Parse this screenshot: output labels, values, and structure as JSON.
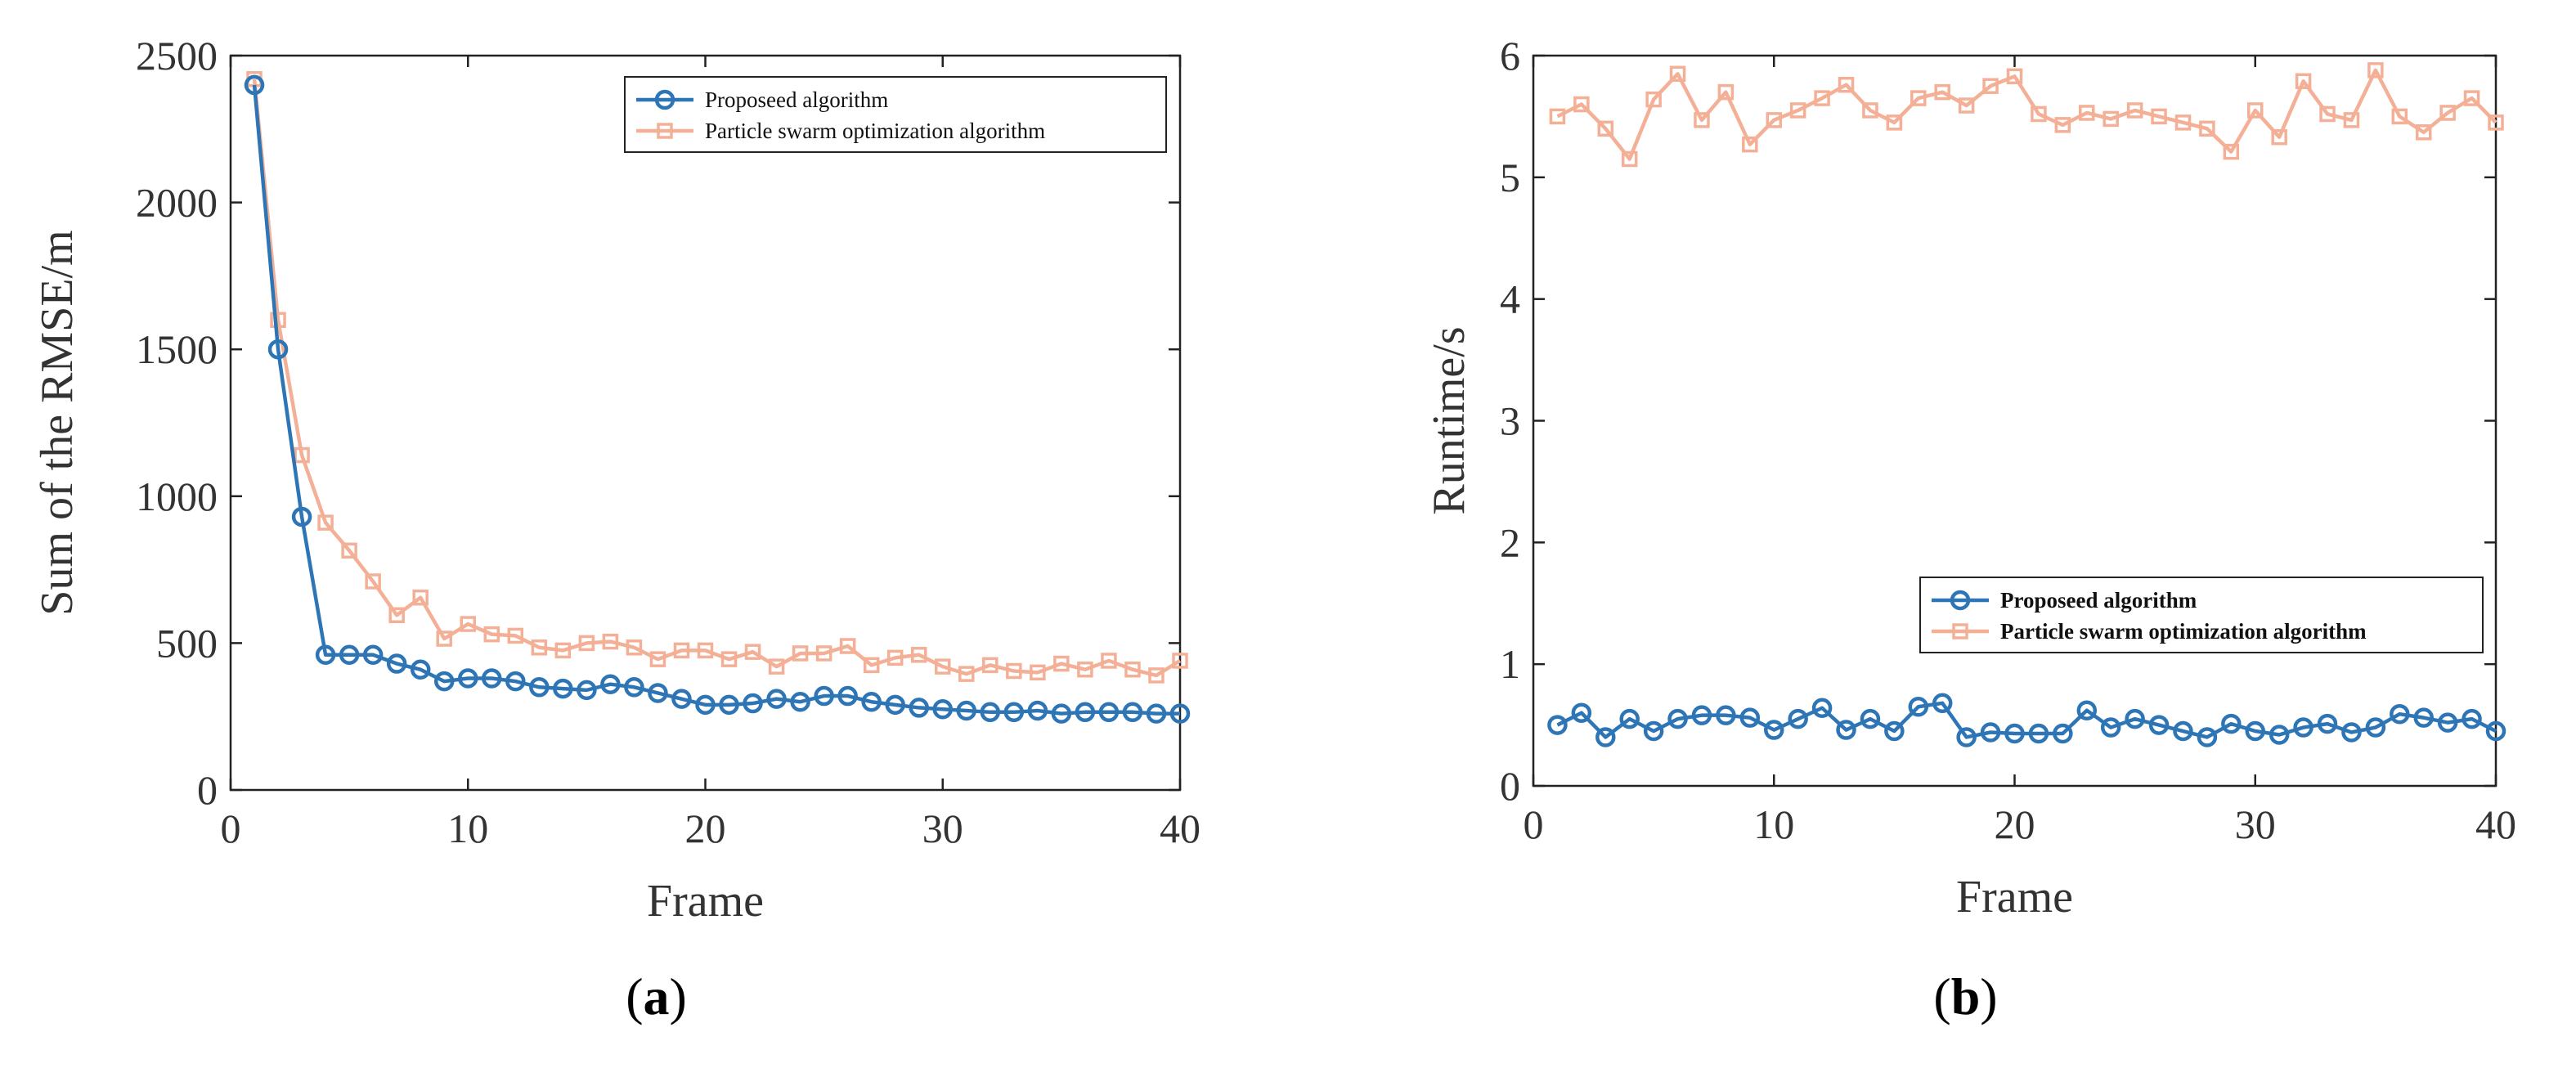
{
  "chart_data": [
    {
      "id": "a",
      "type": "line",
      "panel_label": "a",
      "xlabel": "Frame",
      "ylabel": "Sum of the RMSE/m",
      "xlim": [
        0,
        40
      ],
      "ylim": [
        0,
        2500
      ],
      "xticks": [
        0,
        10,
        20,
        30,
        40
      ],
      "yticks": [
        0,
        500,
        1000,
        1500,
        2000,
        2500
      ],
      "legend_position": "top-right",
      "legend_bold": false,
      "x": [
        1,
        2,
        3,
        4,
        5,
        6,
        7,
        8,
        9,
        10,
        11,
        12,
        13,
        14,
        15,
        16,
        17,
        18,
        19,
        20,
        21,
        22,
        23,
        24,
        25,
        26,
        27,
        28,
        29,
        30,
        31,
        32,
        33,
        34,
        35,
        36,
        37,
        38,
        39,
        40
      ],
      "series": [
        {
          "name": "Proposeed algorithm",
          "color": "#2E75B6",
          "marker": "circle",
          "values": [
            2400,
            1500,
            930,
            460,
            460,
            460,
            430,
            410,
            370,
            380,
            380,
            370,
            350,
            345,
            340,
            360,
            350,
            330,
            310,
            290,
            290,
            295,
            310,
            300,
            320,
            320,
            300,
            290,
            280,
            275,
            270,
            265,
            265,
            270,
            260,
            265,
            265,
            265,
            260,
            260
          ]
        },
        {
          "name": "Particle swarm optimization algorithm",
          "color": "#F4B097",
          "marker": "square",
          "values": [
            2420,
            1600,
            1140,
            910,
            815,
            710,
            595,
            655,
            515,
            565,
            530,
            525,
            485,
            475,
            500,
            505,
            485,
            445,
            475,
            475,
            445,
            470,
            420,
            465,
            465,
            490,
            425,
            450,
            460,
            420,
            395,
            425,
            405,
            400,
            430,
            410,
            440,
            410,
            390,
            440
          ]
        }
      ]
    },
    {
      "id": "b",
      "type": "line",
      "panel_label": "b",
      "xlabel": "Frame",
      "ylabel": "Runtime/s",
      "xlim": [
        0,
        40
      ],
      "ylim": [
        0,
        6
      ],
      "xticks": [
        0,
        10,
        20,
        30,
        40
      ],
      "yticks": [
        0,
        1,
        2,
        3,
        4,
        5,
        6
      ],
      "legend_position": "lower-right",
      "legend_bold": true,
      "x": [
        1,
        2,
        3,
        4,
        5,
        6,
        7,
        8,
        9,
        10,
        11,
        12,
        13,
        14,
        15,
        16,
        17,
        18,
        19,
        20,
        21,
        22,
        23,
        24,
        25,
        26,
        27,
        28,
        29,
        30,
        31,
        32,
        33,
        34,
        35,
        36,
        37,
        38,
        39,
        40
      ],
      "series": [
        {
          "name": "Proposeed algorithm",
          "color": "#2E75B6",
          "marker": "circle",
          "values": [
            0.5,
            0.6,
            0.4,
            0.55,
            0.45,
            0.55,
            0.58,
            0.58,
            0.56,
            0.46,
            0.55,
            0.64,
            0.46,
            0.55,
            0.45,
            0.65,
            0.68,
            0.4,
            0.44,
            0.43,
            0.43,
            0.43,
            0.62,
            0.48,
            0.55,
            0.5,
            0.45,
            0.4,
            0.51,
            0.45,
            0.42,
            0.48,
            0.51,
            0.44,
            0.48,
            0.59,
            0.56,
            0.52,
            0.55,
            0.45
          ]
        },
        {
          "name": "Particle swarm optimization algorithm",
          "color": "#F4B097",
          "marker": "square",
          "values": [
            5.5,
            5.6,
            5.4,
            5.15,
            5.64,
            5.85,
            5.47,
            5.7,
            5.27,
            5.47,
            5.55,
            5.65,
            5.76,
            5.55,
            5.45,
            5.65,
            5.7,
            5.59,
            5.75,
            5.83,
            5.52,
            5.43,
            5.53,
            5.48,
            5.55,
            5.5,
            5.45,
            5.4,
            5.21,
            5.55,
            5.33,
            5.79,
            5.52,
            5.47,
            5.88,
            5.5,
            5.37,
            5.53,
            5.65,
            5.45
          ]
        }
      ]
    }
  ]
}
